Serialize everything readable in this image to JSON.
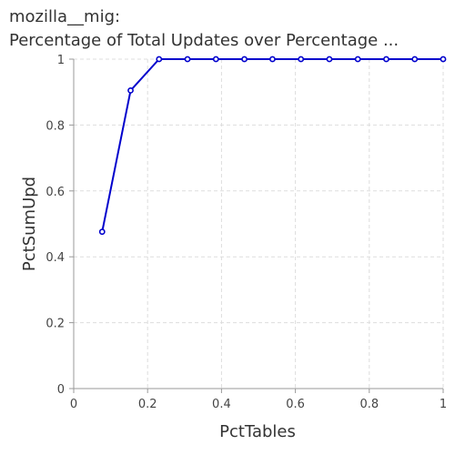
{
  "title_lines": [
    "mozilla__mig:",
    "Percentage of Total Updates over Percentage ..."
  ],
  "colors": {
    "series": "#0000cc",
    "grid": "#dddddd",
    "axis": "#999999"
  },
  "chart_data": {
    "type": "line",
    "title": "mozilla__mig: Percentage of Total Updates over Percentage ...",
    "xlabel": "PctTables",
    "ylabel": "PctSumUpd",
    "xlim": [
      0,
      1
    ],
    "ylim": [
      0,
      1
    ],
    "grid": true,
    "x_ticks": [
      "0",
      "0.2",
      "0.4",
      "0.6",
      "0.8",
      "1"
    ],
    "y_ticks": [
      "0",
      "0.2",
      "0.4",
      "0.6",
      "0.8",
      "1"
    ],
    "series": [
      {
        "x": [
          0.077,
          0.154,
          0.231,
          0.308,
          0.385,
          0.462,
          0.538,
          0.615,
          0.692,
          0.769,
          0.846,
          0.923,
          1.0
        ],
        "y": [
          0.476,
          0.905,
          1.0,
          1.0,
          1.0,
          1.0,
          1.0,
          1.0,
          1.0,
          1.0,
          1.0,
          1.0,
          1.0
        ]
      }
    ]
  }
}
